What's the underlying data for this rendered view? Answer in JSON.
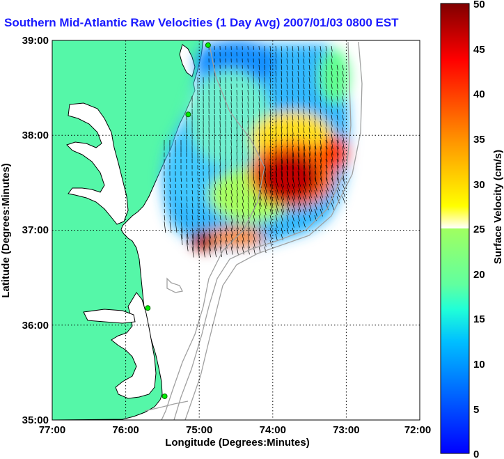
{
  "title": "Southern Mid-Atlantic Raw Velocities (1 Day Avg) 2007/01/03 0800 EST",
  "xlabel": "Longitude (Degrees:Minutes)",
  "ylabel": "Latitude (Degrees:Minutes)",
  "colorbar_label": "Surface Velocity (cm/s)",
  "x_ticks": [
    "77:00",
    "76:00",
    "75:00",
    "74:00",
    "73:00",
    "72:00"
  ],
  "y_ticks": [
    "39:00",
    "38:00",
    "37:00",
    "36:00",
    "35:00"
  ],
  "colorbar_ticks": [
    "50",
    "45",
    "40",
    "35",
    "30",
    "25",
    "20",
    "15",
    "10",
    "5",
    "0"
  ],
  "colors": {
    "land": "#55f7a8",
    "ocean": "#ffffff",
    "coast": "#000000",
    "bathymetry": "#a0a0a0",
    "station": "#00ee00",
    "title": "#1a1aff"
  },
  "chart_data": {
    "type": "heatmap",
    "title": "Southern Mid-Atlantic Raw Velocities (1 Day Avg) 2007/01/03 0800 EST",
    "xlabel": "Longitude (Degrees:Minutes)",
    "ylabel": "Latitude (Degrees:Minutes)",
    "xlim": [
      -77,
      -72
    ],
    "ylim": [
      35,
      39
    ],
    "colorbar": {
      "label": "Surface Velocity (cm/s)",
      "range": [
        0,
        50
      ],
      "unit": "cm/s",
      "colormap": "jet"
    },
    "grid": true,
    "stations": [
      {
        "lon": -74.88,
        "lat": 38.95
      },
      {
        "lon": -75.15,
        "lat": 38.22
      },
      {
        "lon": -75.7,
        "lat": 36.18
      },
      {
        "lon": -75.47,
        "lat": 35.25
      }
    ],
    "velocity_field": [
      {
        "lon": -74.5,
        "lat": 38.75,
        "speed": 6
      },
      {
        "lon": -74.8,
        "lat": 38.5,
        "speed": 14
      },
      {
        "lon": -75.0,
        "lat": 38.0,
        "speed": 16
      },
      {
        "lon": -75.2,
        "lat": 37.6,
        "speed": 8
      },
      {
        "lon": -74.9,
        "lat": 37.3,
        "speed": 14
      },
      {
        "lon": -74.6,
        "lat": 37.6,
        "speed": 22
      },
      {
        "lon": -73.9,
        "lat": 37.55,
        "speed": 48
      },
      {
        "lon": -73.7,
        "lat": 37.7,
        "speed": 45
      },
      {
        "lon": -73.4,
        "lat": 37.7,
        "speed": 38
      },
      {
        "lon": -74.0,
        "lat": 38.0,
        "speed": 24
      },
      {
        "lon": -73.5,
        "lat": 38.3,
        "speed": 16
      },
      {
        "lon": -74.1,
        "lat": 38.6,
        "speed": 14
      },
      {
        "lon": -74.95,
        "lat": 36.85,
        "speed": 46
      },
      {
        "lon": -74.5,
        "lat": 36.9,
        "speed": 33
      },
      {
        "lon": -74.0,
        "lat": 37.0,
        "speed": 25
      }
    ]
  }
}
